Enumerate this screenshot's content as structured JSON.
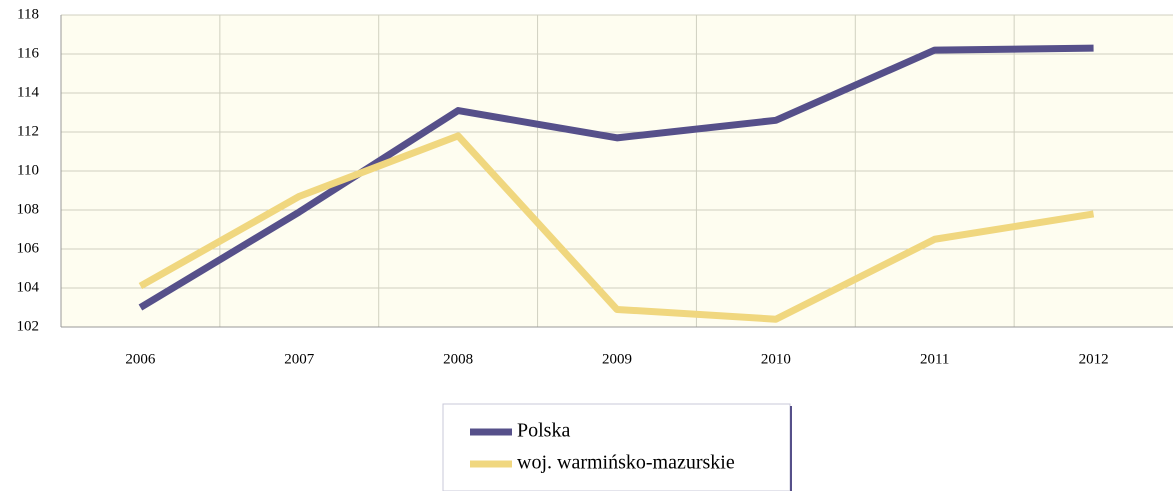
{
  "chart_data": {
    "type": "line",
    "categories": [
      "2006",
      "2007",
      "2008",
      "2009",
      "2010",
      "2011",
      "2012"
    ],
    "series": [
      {
        "name": "Polska",
        "color": "#56508a",
        "values": [
          103.0,
          107.9,
          113.1,
          111.7,
          112.6,
          116.2,
          116.3
        ]
      },
      {
        "name": "woj. warmińsko-mazurskie",
        "color": "#f0d77f",
        "values": [
          104.1,
          108.7,
          111.8,
          102.9,
          102.4,
          106.5,
          107.8
        ]
      }
    ],
    "ylim": [
      102,
      118
    ],
    "yticks": [
      102,
      104,
      106,
      108,
      110,
      112,
      114,
      116,
      118
    ],
    "grid": true
  }
}
